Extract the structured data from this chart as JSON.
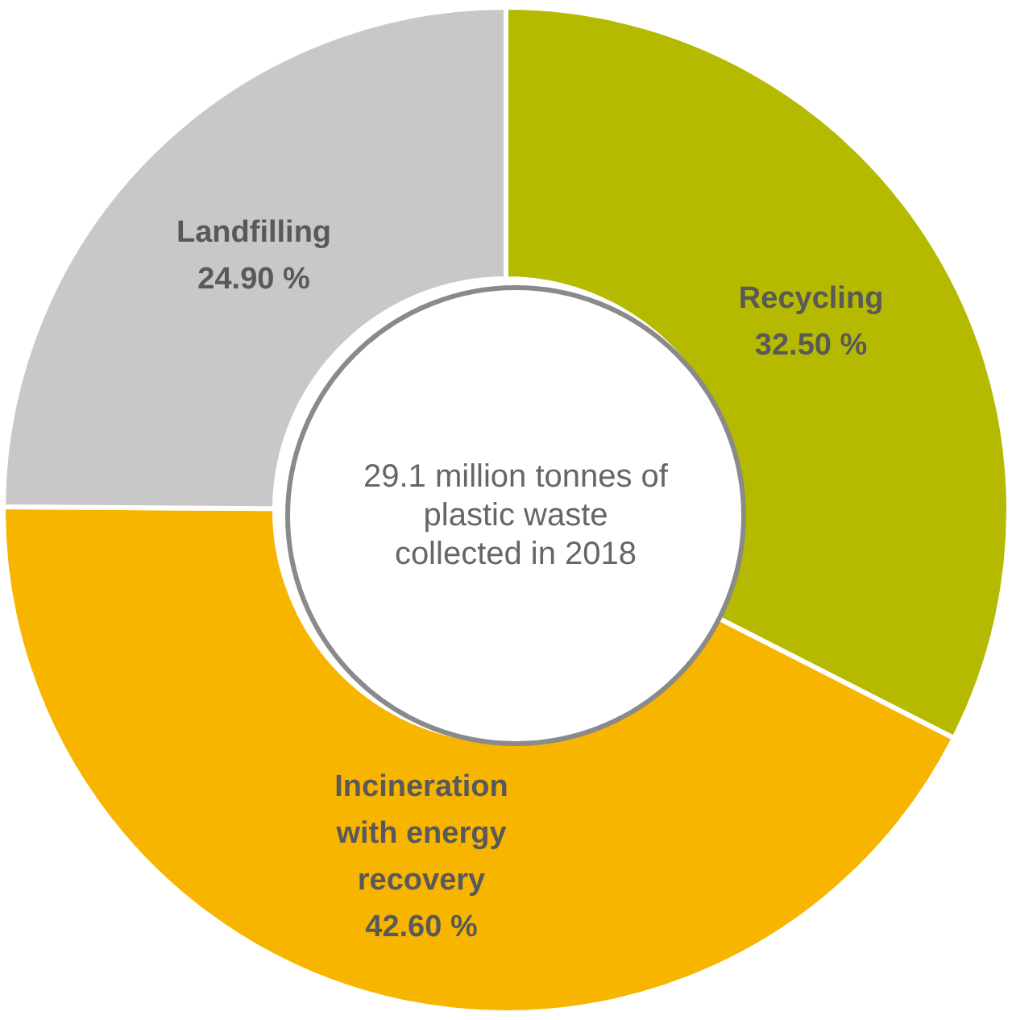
{
  "chart_data": {
    "type": "donut",
    "categories": [
      "Recycling",
      "Incineration with energy recovery",
      "Landfilling"
    ],
    "values": [
      32.5,
      42.6,
      24.9
    ],
    "value_labels": [
      "32.50 %",
      "42.60 %",
      "24.90 %"
    ],
    "colors": [
      "#b5ba00",
      "#f7b500",
      "#c8c8c8"
    ],
    "annotations": [
      "29.1 million tonnes of plastic waste collected in 2018"
    ],
    "legend": false
  }
}
